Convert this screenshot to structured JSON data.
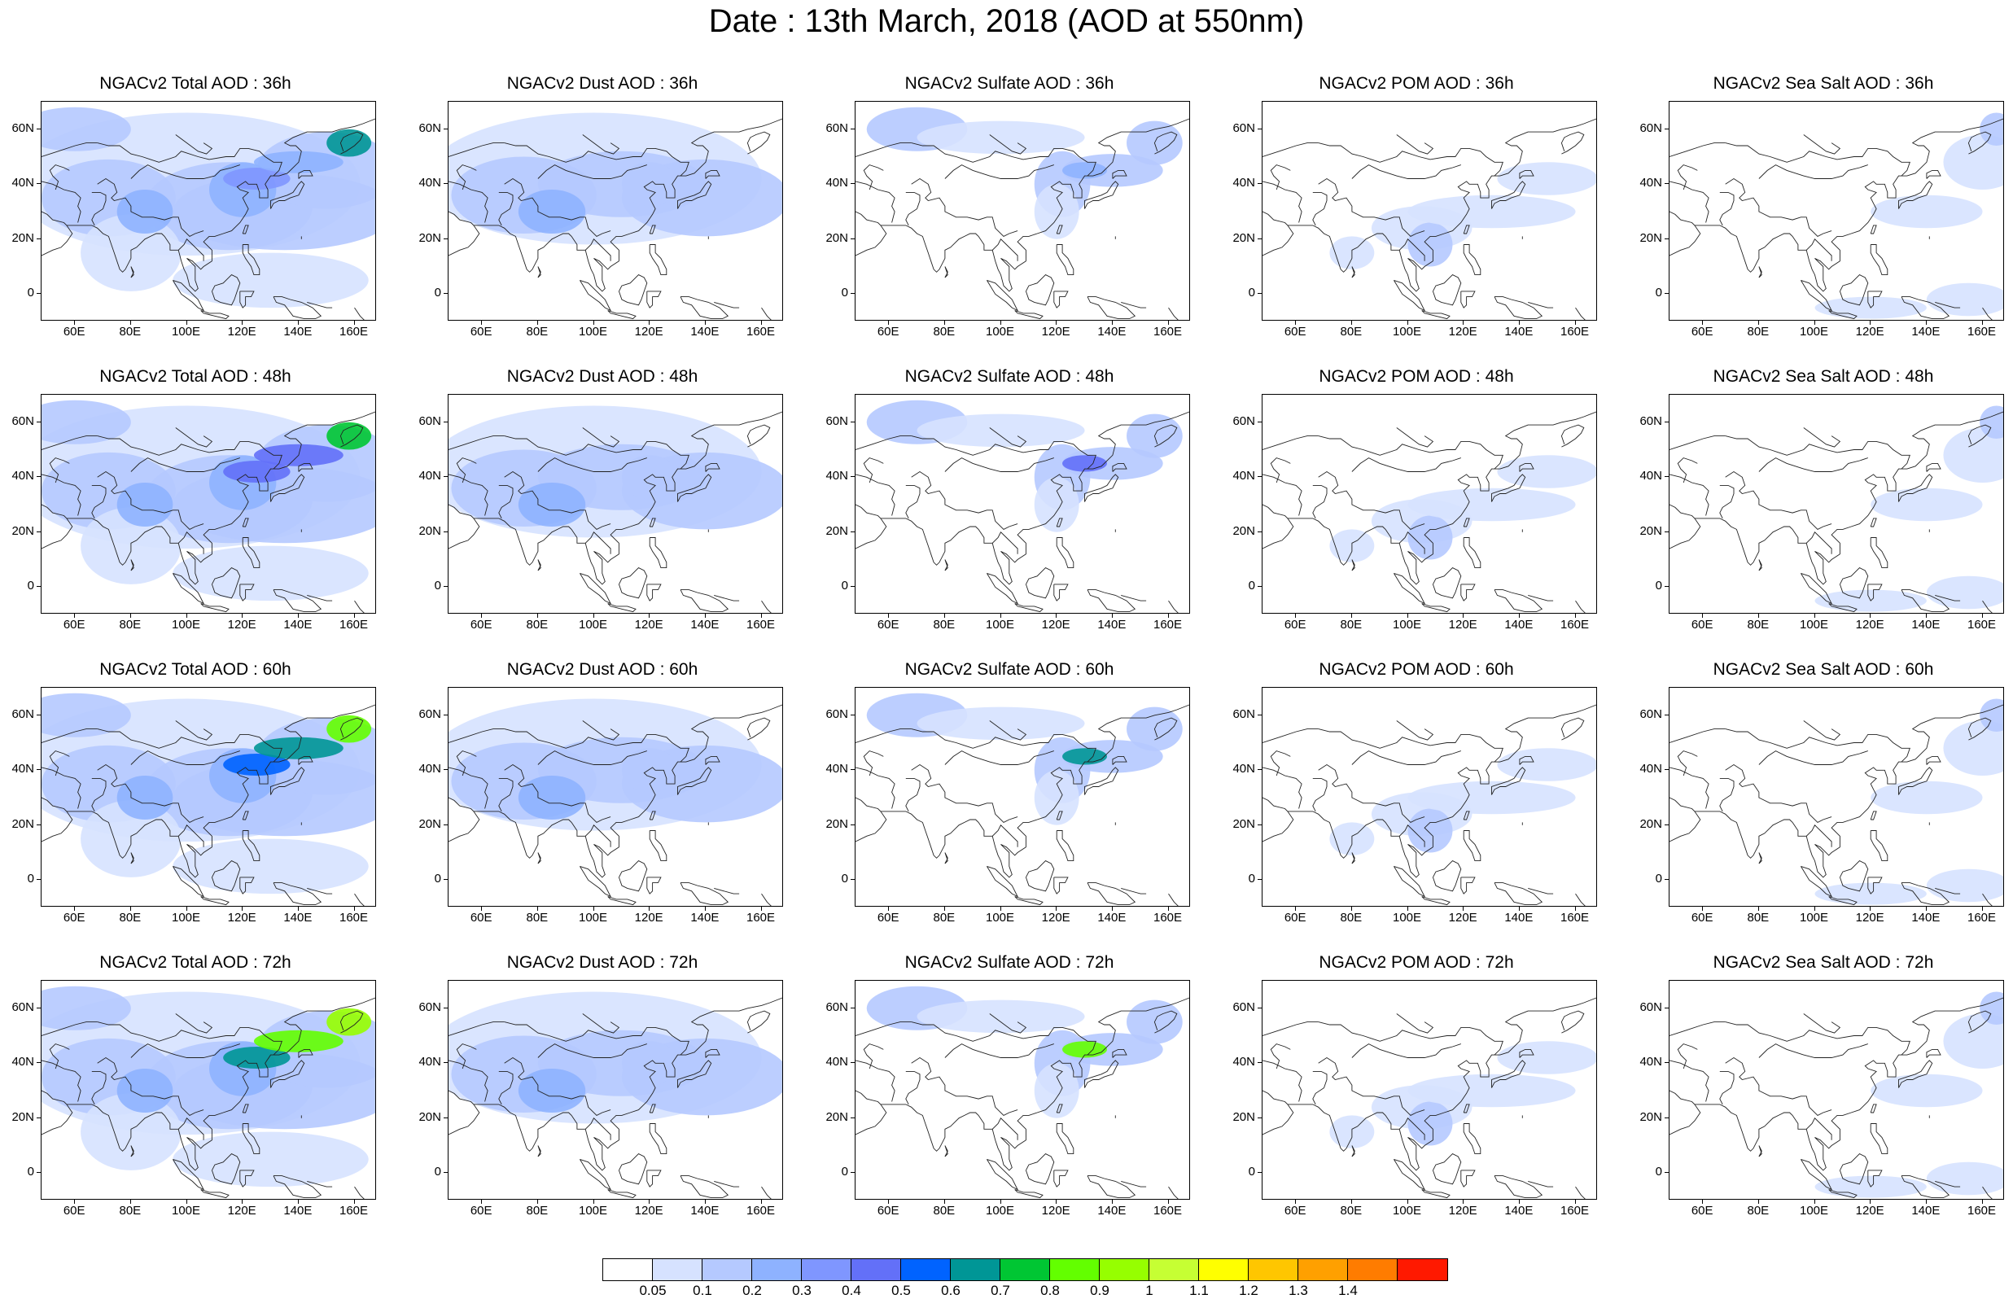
{
  "title": "Date : 13th March, 2018 (AOD at 550nm)",
  "axes": {
    "x_ticks": [
      "60E",
      "80E",
      "100E",
      "120E",
      "140E",
      "160E"
    ],
    "x_values": [
      60,
      80,
      100,
      120,
      140,
      160
    ],
    "y_ticks": [
      "60N",
      "40N",
      "20N",
      "0"
    ],
    "y_values": [
      60,
      40,
      20,
      0
    ],
    "lon_range": [
      48,
      168
    ],
    "lat_range": [
      -10,
      70
    ]
  },
  "map_type": "filled-contour",
  "projection": "cylindrical-equidistant",
  "region": "Asia",
  "rows": [
    {
      "hour": "36h",
      "panels": [
        {
          "title": "NGACv2 Total AOD : 36h",
          "species": "total"
        },
        {
          "title": "NGACv2 Dust AOD : 36h",
          "species": "dust"
        },
        {
          "title": "NGACv2 Sulfate AOD : 36h",
          "species": "sulfate"
        },
        {
          "title": "NGACv2 POM AOD : 36h",
          "species": "pom"
        },
        {
          "title": "NGACv2 Sea Salt AOD : 36h",
          "species": "seasalt"
        }
      ]
    },
    {
      "hour": "48h",
      "panels": [
        {
          "title": "NGACv2 Total AOD : 48h",
          "species": "total"
        },
        {
          "title": "NGACv2 Dust AOD : 48h",
          "species": "dust"
        },
        {
          "title": "NGACv2 Sulfate AOD : 48h",
          "species": "sulfate"
        },
        {
          "title": "NGACv2 POM AOD : 48h",
          "species": "pom"
        },
        {
          "title": "NGACv2 Sea Salt AOD : 48h",
          "species": "seasalt"
        }
      ]
    },
    {
      "hour": "60h",
      "panels": [
        {
          "title": "NGACv2 Total AOD : 60h",
          "species": "total"
        },
        {
          "title": "NGACv2 Dust AOD : 60h",
          "species": "dust"
        },
        {
          "title": "NGACv2 Sulfate AOD : 60h",
          "species": "sulfate"
        },
        {
          "title": "NGACv2 POM AOD : 60h",
          "species": "pom"
        },
        {
          "title": "NGACv2 Sea Salt AOD : 60h",
          "species": "seasalt"
        }
      ]
    },
    {
      "hour": "72h",
      "panels": [
        {
          "title": "NGACv2 Total AOD : 72h",
          "species": "total"
        },
        {
          "title": "NGACv2 Dust AOD : 72h",
          "species": "dust"
        },
        {
          "title": "NGACv2 Sulfate AOD : 72h",
          "species": "sulfate"
        },
        {
          "title": "NGACv2 POM AOD : 72h",
          "species": "pom"
        },
        {
          "title": "NGACv2 Sea Salt  AOD : 72h",
          "species": "seasalt"
        }
      ]
    }
  ],
  "colorbar": {
    "labels": [
      "0.05",
      "0.1",
      "0.2",
      "0.3",
      "0.4",
      "0.5",
      "0.6",
      "0.7",
      "0.8",
      "0.9",
      "1",
      "1.1",
      "1.2",
      "1.3",
      "1.4"
    ],
    "colors": [
      "#ffffff",
      "#d6e2ff",
      "#b5c9ff",
      "#8eb2ff",
      "#7f96ff",
      "#6370f8",
      "#0063ff",
      "#009696",
      "#00c633",
      "#63ff00",
      "#96ff00",
      "#c6ff33",
      "#ffff00",
      "#ffc600",
      "#ffa000",
      "#ff7c00",
      "#ff1900"
    ]
  }
}
